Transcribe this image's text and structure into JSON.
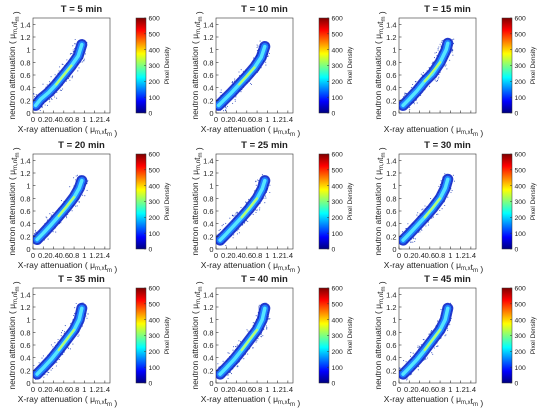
{
  "figure": {
    "common": {
      "xlabel": "X-ray attenuation ( μ",
      "xlabel_sub": "m,x",
      "xlabel_t": "t",
      "xlabel_sub2": "m",
      "xlabel_end": " )",
      "ylabel": "neutron attenuation ( μ",
      "ylabel_sub": "m,n",
      "ylabel_t": "t",
      "ylabel_sub2": "m",
      "ylabel_end": " )",
      "colorbar_label": "Pixel Density",
      "x_ticks": [
        "0",
        "0.2",
        "0.4",
        "0.6",
        "0.8",
        "1",
        "1.2",
        "1.4"
      ],
      "x_tick_values": [
        0,
        0.2,
        0.4,
        0.6,
        0.8,
        1.0,
        1.2,
        1.4
      ],
      "y_ticks": [
        "0",
        "0.2",
        "0.4",
        "0.6",
        "0.8",
        "1",
        "1.2",
        "1.4"
      ],
      "y_tick_values": [
        0,
        0.2,
        0.4,
        0.6,
        0.8,
        1.0,
        1.2,
        1.4
      ],
      "colorbar_ticks": [
        "0",
        "100",
        "200",
        "300",
        "400",
        "500",
        "600"
      ],
      "colorbar_tick_values": [
        0,
        100,
        200,
        300,
        400,
        500,
        600
      ],
      "colormap": "jet",
      "colormap_stops": [
        "#00007f",
        "#0000ff",
        "#007fff",
        "#00ffff",
        "#7fff7f",
        "#ffff00",
        "#ff7f00",
        "#ff0000",
        "#7f0000"
      ]
    }
  },
  "chart_data": [
    {
      "type": "heatmap",
      "title": "T = 5 min",
      "xlim": [
        0,
        1.5
      ],
      "ylim": [
        0,
        1.5
      ],
      "clim": [
        0,
        600
      ],
      "x_tick_labels_shown": true,
      "points": [
        [
          0.05,
          0.12
        ],
        [
          0.15,
          0.22
        ],
        [
          0.3,
          0.32
        ],
        [
          0.45,
          0.45
        ],
        [
          0.6,
          0.6
        ],
        [
          0.75,
          0.75
        ],
        [
          0.88,
          0.9
        ],
        [
          0.95,
          1.08
        ]
      ]
    },
    {
      "type": "heatmap",
      "title": "T = 10 min",
      "xlim": [
        0,
        1.5
      ],
      "ylim": [
        0,
        1.5
      ],
      "clim": [
        0,
        600
      ],
      "x_tick_labels_shown": true,
      "points": [
        [
          0.05,
          0.12
        ],
        [
          0.15,
          0.2
        ],
        [
          0.3,
          0.32
        ],
        [
          0.45,
          0.45
        ],
        [
          0.6,
          0.58
        ],
        [
          0.75,
          0.72
        ],
        [
          0.88,
          0.88
        ],
        [
          0.95,
          1.05
        ]
      ]
    },
    {
      "type": "heatmap",
      "title": "T = 15 min",
      "xlim": [
        0,
        1.5
      ],
      "ylim": [
        0,
        1.5
      ],
      "clim": [
        0,
        600
      ],
      "x_tick_labels_shown": false,
      "points": [
        [
          0.08,
          0.12
        ],
        [
          0.2,
          0.22
        ],
        [
          0.35,
          0.35
        ],
        [
          0.5,
          0.5
        ],
        [
          0.65,
          0.62
        ],
        [
          0.8,
          0.8
        ],
        [
          0.92,
          1.0
        ],
        [
          0.95,
          1.1
        ]
      ]
    },
    {
      "type": "heatmap",
      "title": "T = 20 min",
      "xlim": [
        0,
        1.5
      ],
      "ylim": [
        0,
        1.5
      ],
      "clim": [
        0,
        600
      ],
      "x_tick_labels_shown": true,
      "points": [
        [
          0.08,
          0.15
        ],
        [
          0.2,
          0.25
        ],
        [
          0.35,
          0.38
        ],
        [
          0.5,
          0.52
        ],
        [
          0.65,
          0.66
        ],
        [
          0.8,
          0.82
        ],
        [
          0.9,
          0.96
        ],
        [
          0.95,
          1.08
        ]
      ]
    },
    {
      "type": "heatmap",
      "title": "T = 25 min",
      "xlim": [
        0,
        1.5
      ],
      "ylim": [
        0,
        1.5
      ],
      "clim": [
        0,
        600
      ],
      "x_tick_labels_shown": true,
      "points": [
        [
          0.08,
          0.14
        ],
        [
          0.2,
          0.24
        ],
        [
          0.35,
          0.37
        ],
        [
          0.5,
          0.5
        ],
        [
          0.65,
          0.64
        ],
        [
          0.8,
          0.8
        ],
        [
          0.9,
          0.95
        ],
        [
          0.95,
          1.08
        ]
      ]
    },
    {
      "type": "heatmap",
      "title": "T = 30 min",
      "xlim": [
        0,
        1.5
      ],
      "ylim": [
        0,
        1.5
      ],
      "clim": [
        0,
        600
      ],
      "x_tick_labels_shown": true,
      "points": [
        [
          0.08,
          0.14
        ],
        [
          0.2,
          0.24
        ],
        [
          0.35,
          0.37
        ],
        [
          0.5,
          0.5
        ],
        [
          0.65,
          0.64
        ],
        [
          0.8,
          0.8
        ],
        [
          0.9,
          0.96
        ],
        [
          0.95,
          1.1
        ]
      ]
    },
    {
      "type": "heatmap",
      "title": "T = 35 min",
      "xlim": [
        0,
        1.5
      ],
      "ylim": [
        0,
        1.5
      ],
      "clim": [
        0,
        600
      ],
      "x_tick_labels_shown": true,
      "points": [
        [
          0.08,
          0.14
        ],
        [
          0.2,
          0.24
        ],
        [
          0.35,
          0.37
        ],
        [
          0.5,
          0.52
        ],
        [
          0.65,
          0.68
        ],
        [
          0.8,
          0.84
        ],
        [
          0.9,
          1.0
        ],
        [
          0.95,
          1.18
        ]
      ]
    },
    {
      "type": "heatmap",
      "title": "T = 40 min",
      "xlim": [
        0,
        1.5
      ],
      "ylim": [
        0,
        1.5
      ],
      "clim": [
        0,
        600
      ],
      "x_tick_labels_shown": true,
      "points": [
        [
          0.08,
          0.14
        ],
        [
          0.2,
          0.24
        ],
        [
          0.35,
          0.37
        ],
        [
          0.5,
          0.52
        ],
        [
          0.65,
          0.68
        ],
        [
          0.8,
          0.84
        ],
        [
          0.9,
          1.0
        ],
        [
          0.95,
          1.18
        ]
      ]
    },
    {
      "type": "heatmap",
      "title": "T = 45 min",
      "xlim": [
        0,
        1.5
      ],
      "ylim": [
        0,
        1.5
      ],
      "clim": [
        0,
        600
      ],
      "x_tick_labels_shown": true,
      "points": [
        [
          0.08,
          0.14
        ],
        [
          0.2,
          0.24
        ],
        [
          0.35,
          0.37
        ],
        [
          0.5,
          0.52
        ],
        [
          0.65,
          0.68
        ],
        [
          0.8,
          0.84
        ],
        [
          0.9,
          1.0
        ],
        [
          0.95,
          1.18
        ]
      ]
    }
  ]
}
